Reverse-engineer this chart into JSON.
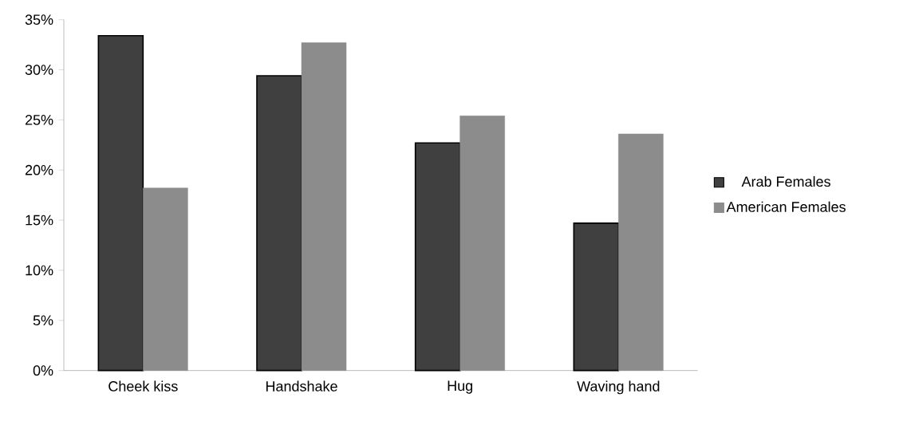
{
  "chart_data": {
    "type": "bar",
    "categories": [
      "Cheek kiss",
      "Handshake",
      "Hug",
      "Waving hand"
    ],
    "series": [
      {
        "name": "Arab Females",
        "color": "#404040",
        "values": [
          33.4,
          29.4,
          22.7,
          14.7
        ]
      },
      {
        "name": "American Females",
        "color": "#8c8c8c",
        "values": [
          18.2,
          32.7,
          25.4,
          23.6
        ]
      }
    ],
    "ylim": [
      0,
      35
    ],
    "yticks": [
      {
        "value": 0,
        "label": "0%"
      },
      {
        "value": 5,
        "label": "5%"
      },
      {
        "value": 10,
        "label": "10%"
      },
      {
        "value": 15,
        "label": "15%"
      },
      {
        "value": 20,
        "label": "20%"
      },
      {
        "value": 25,
        "label": "25%"
      },
      {
        "value": 30,
        "label": "30%"
      },
      {
        "value": 35,
        "label": "35%"
      }
    ],
    "grid": false,
    "legend": "right"
  }
}
